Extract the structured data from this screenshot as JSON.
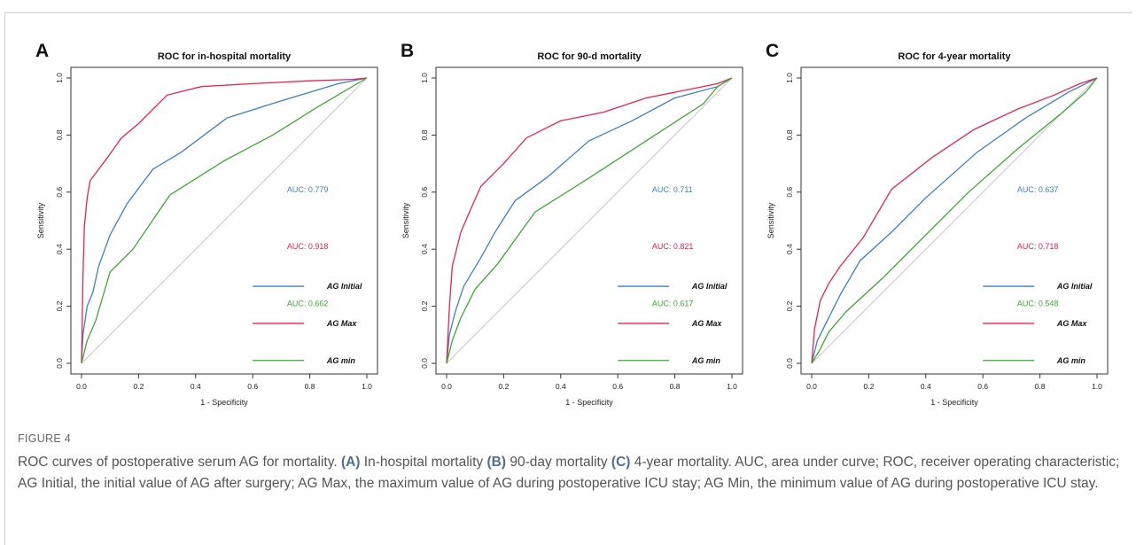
{
  "figure_label": "FIGURE 4",
  "caption": {
    "intro": "ROC curves of postoperative serum AG for mortality.",
    "parts": [
      {
        "letter": "(A)",
        "text": "In-hospital mortality"
      },
      {
        "letter": "(B)",
        "text": "90-day mortality"
      },
      {
        "letter": "(C)",
        "text": "4-year mortality."
      }
    ],
    "rest": "AUC, area under curve; ROC, receiver operating characteristic; AG Initial, the initial value of AG after surgery; AG Max, the maximum value of AG during postoperative ICU stay; AG Min, the minimum value of AG during postoperative ICU stay."
  },
  "colors": {
    "initial": "#3d7fc2",
    "max": "#e8234f",
    "min": "#3caa32",
    "diagonal": "#c8c8c8"
  },
  "chart_data": [
    {
      "type": "line",
      "panel": "A",
      "title": "ROC for in-hospital mortality",
      "xlabel": "1 - Specificity",
      "ylabel": "Sensitivity",
      "xlim": [
        0,
        1
      ],
      "ylim": [
        0,
        1
      ],
      "ticks": [
        "0.0",
        "0.2",
        "0.4",
        "0.6",
        "0.8",
        "1.0"
      ],
      "grid": false,
      "legend_position": "bottom-right",
      "auc_labels": [
        "AUC: 0.779",
        "AUC: 0.918",
        "AUC: 0.662"
      ],
      "series": [
        {
          "name": "AG Initial",
          "color_key": "initial",
          "points": [
            [
              0,
              0
            ],
            [
              0.005,
              0.1
            ],
            [
              0.02,
              0.2
            ],
            [
              0.04,
              0.25
            ],
            [
              0.06,
              0.34
            ],
            [
              0.1,
              0.45
            ],
            [
              0.16,
              0.56
            ],
            [
              0.25,
              0.68
            ],
            [
              0.35,
              0.74
            ],
            [
              0.51,
              0.86
            ],
            [
              0.7,
              0.92
            ],
            [
              0.8,
              0.95
            ],
            [
              0.9,
              0.98
            ],
            [
              1,
              1
            ]
          ]
        },
        {
          "name": "AG Max",
          "color_key": "max",
          "points": [
            [
              0,
              0
            ],
            [
              0.005,
              0.3
            ],
            [
              0.01,
              0.48
            ],
            [
              0.02,
              0.58
            ],
            [
              0.03,
              0.64
            ],
            [
              0.06,
              0.68
            ],
            [
              0.09,
              0.72
            ],
            [
              0.14,
              0.79
            ],
            [
              0.2,
              0.84
            ],
            [
              0.3,
              0.94
            ],
            [
              0.42,
              0.97
            ],
            [
              0.6,
              0.98
            ],
            [
              0.8,
              0.99
            ],
            [
              0.95,
              0.995
            ],
            [
              1,
              1
            ]
          ]
        },
        {
          "name": "AG min",
          "color_key": "min",
          "points": [
            [
              0,
              0
            ],
            [
              0.02,
              0.08
            ],
            [
              0.05,
              0.15
            ],
            [
              0.1,
              0.32
            ],
            [
              0.18,
              0.4
            ],
            [
              0.31,
              0.59
            ],
            [
              0.5,
              0.71
            ],
            [
              0.67,
              0.8
            ],
            [
              0.83,
              0.9
            ],
            [
              1,
              1
            ]
          ]
        }
      ]
    },
    {
      "type": "line",
      "panel": "B",
      "title": "ROC for 90-d mortality",
      "xlabel": "1 - Specificity",
      "ylabel": "Sensitivity",
      "xlim": [
        0,
        1
      ],
      "ylim": [
        0,
        1
      ],
      "ticks": [
        "0.0",
        "0.2",
        "0.4",
        "0.6",
        "0.8",
        "1.0"
      ],
      "grid": false,
      "legend_position": "bottom-right",
      "auc_labels": [
        "AUC: 0.711",
        "AUC: 0.821",
        "AUC: 0.617"
      ],
      "series": [
        {
          "name": "AG Initial",
          "color_key": "initial",
          "points": [
            [
              0,
              0
            ],
            [
              0.01,
              0.1
            ],
            [
              0.03,
              0.18
            ],
            [
              0.06,
              0.27
            ],
            [
              0.12,
              0.37
            ],
            [
              0.17,
              0.46
            ],
            [
              0.24,
              0.57
            ],
            [
              0.35,
              0.65
            ],
            [
              0.5,
              0.78
            ],
            [
              0.65,
              0.85
            ],
            [
              0.8,
              0.93
            ],
            [
              0.95,
              0.97
            ],
            [
              1,
              1
            ]
          ]
        },
        {
          "name": "AG Max",
          "color_key": "max",
          "points": [
            [
              0,
              0
            ],
            [
              0.01,
              0.2
            ],
            [
              0.02,
              0.34
            ],
            [
              0.05,
              0.46
            ],
            [
              0.08,
              0.53
            ],
            [
              0.12,
              0.62
            ],
            [
              0.2,
              0.7
            ],
            [
              0.28,
              0.79
            ],
            [
              0.4,
              0.85
            ],
            [
              0.55,
              0.88
            ],
            [
              0.7,
              0.93
            ],
            [
              0.85,
              0.96
            ],
            [
              0.95,
              0.98
            ],
            [
              1,
              1
            ]
          ]
        },
        {
          "name": "AG min",
          "color_key": "min",
          "points": [
            [
              0,
              0
            ],
            [
              0.02,
              0.08
            ],
            [
              0.05,
              0.16
            ],
            [
              0.1,
              0.26
            ],
            [
              0.18,
              0.35
            ],
            [
              0.31,
              0.53
            ],
            [
              0.5,
              0.65
            ],
            [
              0.7,
              0.78
            ],
            [
              0.9,
              0.91
            ],
            [
              0.95,
              0.97
            ],
            [
              1,
              1
            ]
          ]
        }
      ]
    },
    {
      "type": "line",
      "panel": "C",
      "title": "ROC for 4-year mortality",
      "xlabel": "1 - Specificity",
      "ylabel": "Sensitivity",
      "xlim": [
        0,
        1
      ],
      "ylim": [
        0,
        1
      ],
      "ticks": [
        "0.0",
        "0.2",
        "0.4",
        "0.6",
        "0.8",
        "1.0"
      ],
      "grid": false,
      "legend_position": "bottom-right",
      "auc_labels": [
        "AUC: 0.637",
        "AUC: 0.718",
        "AUC: 0.548"
      ],
      "series": [
        {
          "name": "AG Initial",
          "color_key": "initial",
          "points": [
            [
              0,
              0
            ],
            [
              0.02,
              0.08
            ],
            [
              0.05,
              0.14
            ],
            [
              0.1,
              0.24
            ],
            [
              0.17,
              0.36
            ],
            [
              0.28,
              0.46
            ],
            [
              0.4,
              0.58
            ],
            [
              0.58,
              0.74
            ],
            [
              0.75,
              0.86
            ],
            [
              0.9,
              0.95
            ],
            [
              1,
              1
            ]
          ]
        },
        {
          "name": "AG Max",
          "color_key": "max",
          "points": [
            [
              0,
              0
            ],
            [
              0.01,
              0.12
            ],
            [
              0.03,
              0.22
            ],
            [
              0.06,
              0.28
            ],
            [
              0.1,
              0.34
            ],
            [
              0.18,
              0.44
            ],
            [
              0.28,
              0.61
            ],
            [
              0.42,
              0.72
            ],
            [
              0.57,
              0.82
            ],
            [
              0.72,
              0.89
            ],
            [
              0.85,
              0.94
            ],
            [
              0.94,
              0.98
            ],
            [
              1,
              1
            ]
          ]
        },
        {
          "name": "AG min",
          "color_key": "min",
          "points": [
            [
              0,
              0
            ],
            [
              0.03,
              0.05
            ],
            [
              0.06,
              0.11
            ],
            [
              0.12,
              0.18
            ],
            [
              0.25,
              0.3
            ],
            [
              0.4,
              0.45
            ],
            [
              0.55,
              0.6
            ],
            [
              0.72,
              0.75
            ],
            [
              0.88,
              0.88
            ],
            [
              0.96,
              0.95
            ],
            [
              1,
              1
            ]
          ]
        }
      ]
    }
  ]
}
